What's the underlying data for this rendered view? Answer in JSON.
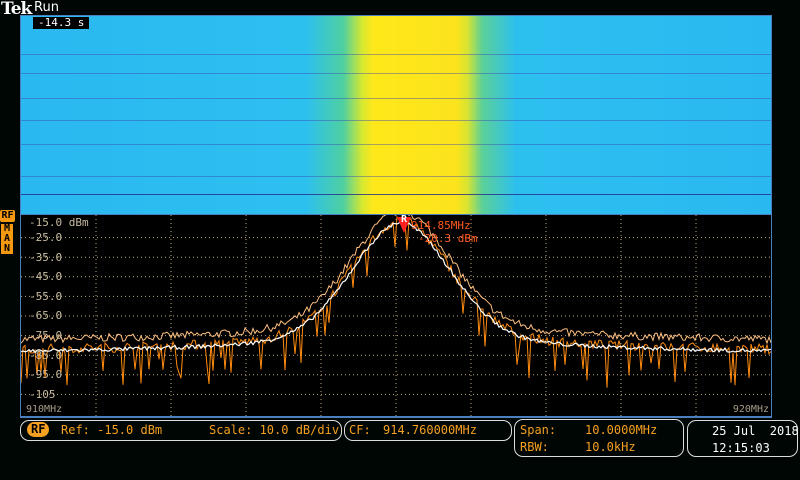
{
  "header": {
    "brand": "Tek",
    "state": "Run"
  },
  "spectrogram": {
    "time": "-14.3 s"
  },
  "channel": {
    "badge": "RF",
    "mode": [
      "M",
      "A",
      "N"
    ]
  },
  "graticule": {
    "ref_label": "-15.0 dBm",
    "y_ticks": [
      "-25.0",
      "-35.0",
      "-45.0",
      "-55.0",
      "-65.0",
      "-75.0",
      "-85.0",
      "-95.0",
      "-105"
    ],
    "x_start": "910MHz",
    "x_stop": "920MHz"
  },
  "marker": {
    "badge": "R",
    "freq": "914.85MHz",
    "level": "-20.3 dBm"
  },
  "colors": {
    "normal": "#ff8c10",
    "average": "#ffffff",
    "max_hold": "#ffc080",
    "accent": "#f5a020"
  },
  "status": {
    "rf_badge": "RF",
    "ref": "Ref: -15.0 dBm",
    "scale": "Scale: 10.0 dB/div",
    "cf_label": "CF:",
    "cf_value": "914.760000MHz",
    "span_label": "Span:",
    "span_value": "10.0000MHz",
    "rbw_label": "RBW:",
    "rbw_value": "10.0kHz",
    "date": "25 Jul  2018",
    "time": "12:15:03"
  }
}
